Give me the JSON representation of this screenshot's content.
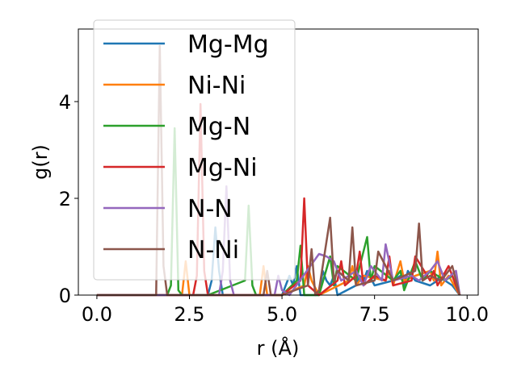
{
  "chart_data": {
    "type": "line",
    "title": "",
    "xlabel": "r (Å)",
    "ylabel": "g(r)",
    "xlim": [
      -0.5,
      10.3
    ],
    "ylim": [
      0,
      5.5
    ],
    "xticks": [
      "0.0",
      "2.5",
      "5.0",
      "7.5",
      "10.0"
    ],
    "xtick_values": [
      0,
      2.5,
      5,
      7.5,
      10
    ],
    "yticks": [
      "0",
      "2",
      "4"
    ],
    "ytick_values": [
      0,
      2,
      4
    ],
    "grid": false,
    "legend_position": "upper-left",
    "series": [
      {
        "name": "Mg-Mg",
        "color": "#1f77b4",
        "x": [
          0,
          1,
          2,
          3,
          3.1,
          3.2,
          3.3,
          3.4,
          3.5,
          4,
          5,
          5.2,
          5.3,
          5.4,
          5.5,
          6,
          6.1,
          6.2,
          6.3,
          6.4,
          6.5,
          7,
          7.1,
          7.2,
          7.3,
          7.5,
          8,
          8.2,
          8.3,
          8.4,
          8.6,
          9,
          9.2,
          9.3,
          9.4,
          9.6,
          9.8
        ],
        "y": [
          0,
          0,
          0,
          0,
          0.3,
          1.4,
          0.5,
          0,
          0,
          0,
          0,
          0.4,
          0.2,
          0.6,
          0,
          0,
          0.5,
          0.3,
          0.2,
          0.4,
          0,
          0.2,
          0.4,
          0.3,
          0.5,
          0.2,
          0.3,
          0.4,
          0.2,
          0.5,
          0.3,
          0.2,
          0.3,
          0.5,
          0.3,
          0.2,
          0
        ]
      },
      {
        "name": "Ni-Ni",
        "color": "#ff7f0e",
        "x": [
          0,
          1,
          2,
          2.3,
          2.4,
          2.5,
          2.6,
          2.7,
          3,
          4,
          4.4,
          4.5,
          4.6,
          5,
          5.6,
          5.7,
          5.8,
          6,
          6.8,
          6.9,
          7,
          7.2,
          7.8,
          7.9,
          8,
          8.2,
          8.3,
          8.6,
          9,
          9.1,
          9.2,
          9.3,
          9.5,
          9.8
        ],
        "y": [
          0,
          0,
          0,
          0,
          0.7,
          0,
          0,
          0,
          0,
          0,
          0,
          0.6,
          0,
          0,
          0.2,
          0.6,
          0.3,
          0,
          0.3,
          0.6,
          0.2,
          0.4,
          0.3,
          0.5,
          0.2,
          0.7,
          0.3,
          0.4,
          0.5,
          0.3,
          0.9,
          0.2,
          0.4,
          0
        ]
      },
      {
        "name": "Mg-N",
        "color": "#2ca02c",
        "x": [
          0,
          1,
          1.9,
          2.0,
          2.1,
          2.2,
          2.3,
          3,
          4.0,
          4.1,
          4.2,
          4.3,
          5,
          5.4,
          5.5,
          5.6,
          6,
          6.3,
          6.4,
          6.5,
          7,
          7.3,
          7.4,
          7.5,
          8,
          8.2,
          8.3,
          8.6,
          8.8,
          9,
          9.4,
          9.6,
          9.8
        ],
        "y": [
          0,
          0,
          0,
          0.2,
          3.45,
          0.1,
          0,
          0,
          0.3,
          1.85,
          0.2,
          0,
          0,
          0.3,
          1.02,
          0,
          0,
          0.8,
          0.2,
          0.6,
          0.3,
          1.2,
          0.3,
          0.6,
          0.3,
          0.5,
          0.1,
          0.7,
          0.3,
          0.5,
          0.3,
          0.4,
          0
        ]
      },
      {
        "name": "Mg-Ni",
        "color": "#d62728",
        "x": [
          0,
          1,
          2,
          2.6,
          2.7,
          2.8,
          2.9,
          3.0,
          3.5,
          4,
          4.5,
          5,
          5.5,
          5.6,
          5.7,
          6,
          6.5,
          6.6,
          6.7,
          7,
          7.1,
          7.2,
          7.5,
          7.8,
          7.9,
          8.0,
          8.5,
          8.6,
          9,
          9.1,
          9.2,
          9.5,
          9.8
        ],
        "y": [
          0,
          0,
          0,
          0,
          0.4,
          3.95,
          0.5,
          0,
          0,
          0,
          0,
          0,
          0.3,
          2.0,
          0.2,
          0,
          0.3,
          0.7,
          0.2,
          0.4,
          0.9,
          0.2,
          0.4,
          0.3,
          0.8,
          0.2,
          0.3,
          0.8,
          0.3,
          0.5,
          0.2,
          0.6,
          0
        ]
      },
      {
        "name": "N-N",
        "color": "#9467bd",
        "x": [
          0,
          1,
          2,
          3,
          3.3,
          3.4,
          3.5,
          3.6,
          3.7,
          4,
          4.8,
          4.9,
          5.0,
          5.2,
          6.0,
          6.2,
          6.4,
          6.6,
          7,
          7.2,
          7.4,
          7.7,
          7.8,
          8,
          8.5,
          8.7,
          9,
          9.2,
          9.4,
          9.7,
          9.8
        ],
        "y": [
          0,
          0,
          0,
          0,
          0,
          0.5,
          2.25,
          0.3,
          0,
          0,
          0,
          0.4,
          0.1,
          0,
          0.85,
          0.8,
          0.7,
          0.3,
          0.5,
          0.2,
          0.6,
          0.3,
          1.05,
          0.3,
          0.4,
          0.3,
          0.5,
          0.7,
          0.3,
          0.5,
          0
        ]
      },
      {
        "name": "N-Ni",
        "color": "#8c564b",
        "x": [
          0,
          1,
          1.6,
          1.7,
          1.8,
          1.9,
          2,
          3,
          4,
          4.5,
          4.6,
          4.7,
          5,
          5.7,
          5.8,
          5.9,
          6,
          6.3,
          6.4,
          6.5,
          6.8,
          6.9,
          7,
          7.5,
          7.6,
          8,
          8.6,
          8.7,
          8.8,
          9,
          9.3,
          9.6,
          9.8
        ],
        "y": [
          0,
          0,
          0,
          5.15,
          0.6,
          0,
          0,
          0,
          0,
          0,
          0.5,
          0,
          0,
          0.2,
          0.95,
          0,
          0.1,
          1.6,
          0.3,
          0.5,
          0.3,
          1.4,
          0.2,
          0.3,
          0.9,
          0.3,
          0.5,
          1.48,
          0.3,
          0.4,
          0.3,
          0.6,
          0
        ]
      }
    ]
  }
}
